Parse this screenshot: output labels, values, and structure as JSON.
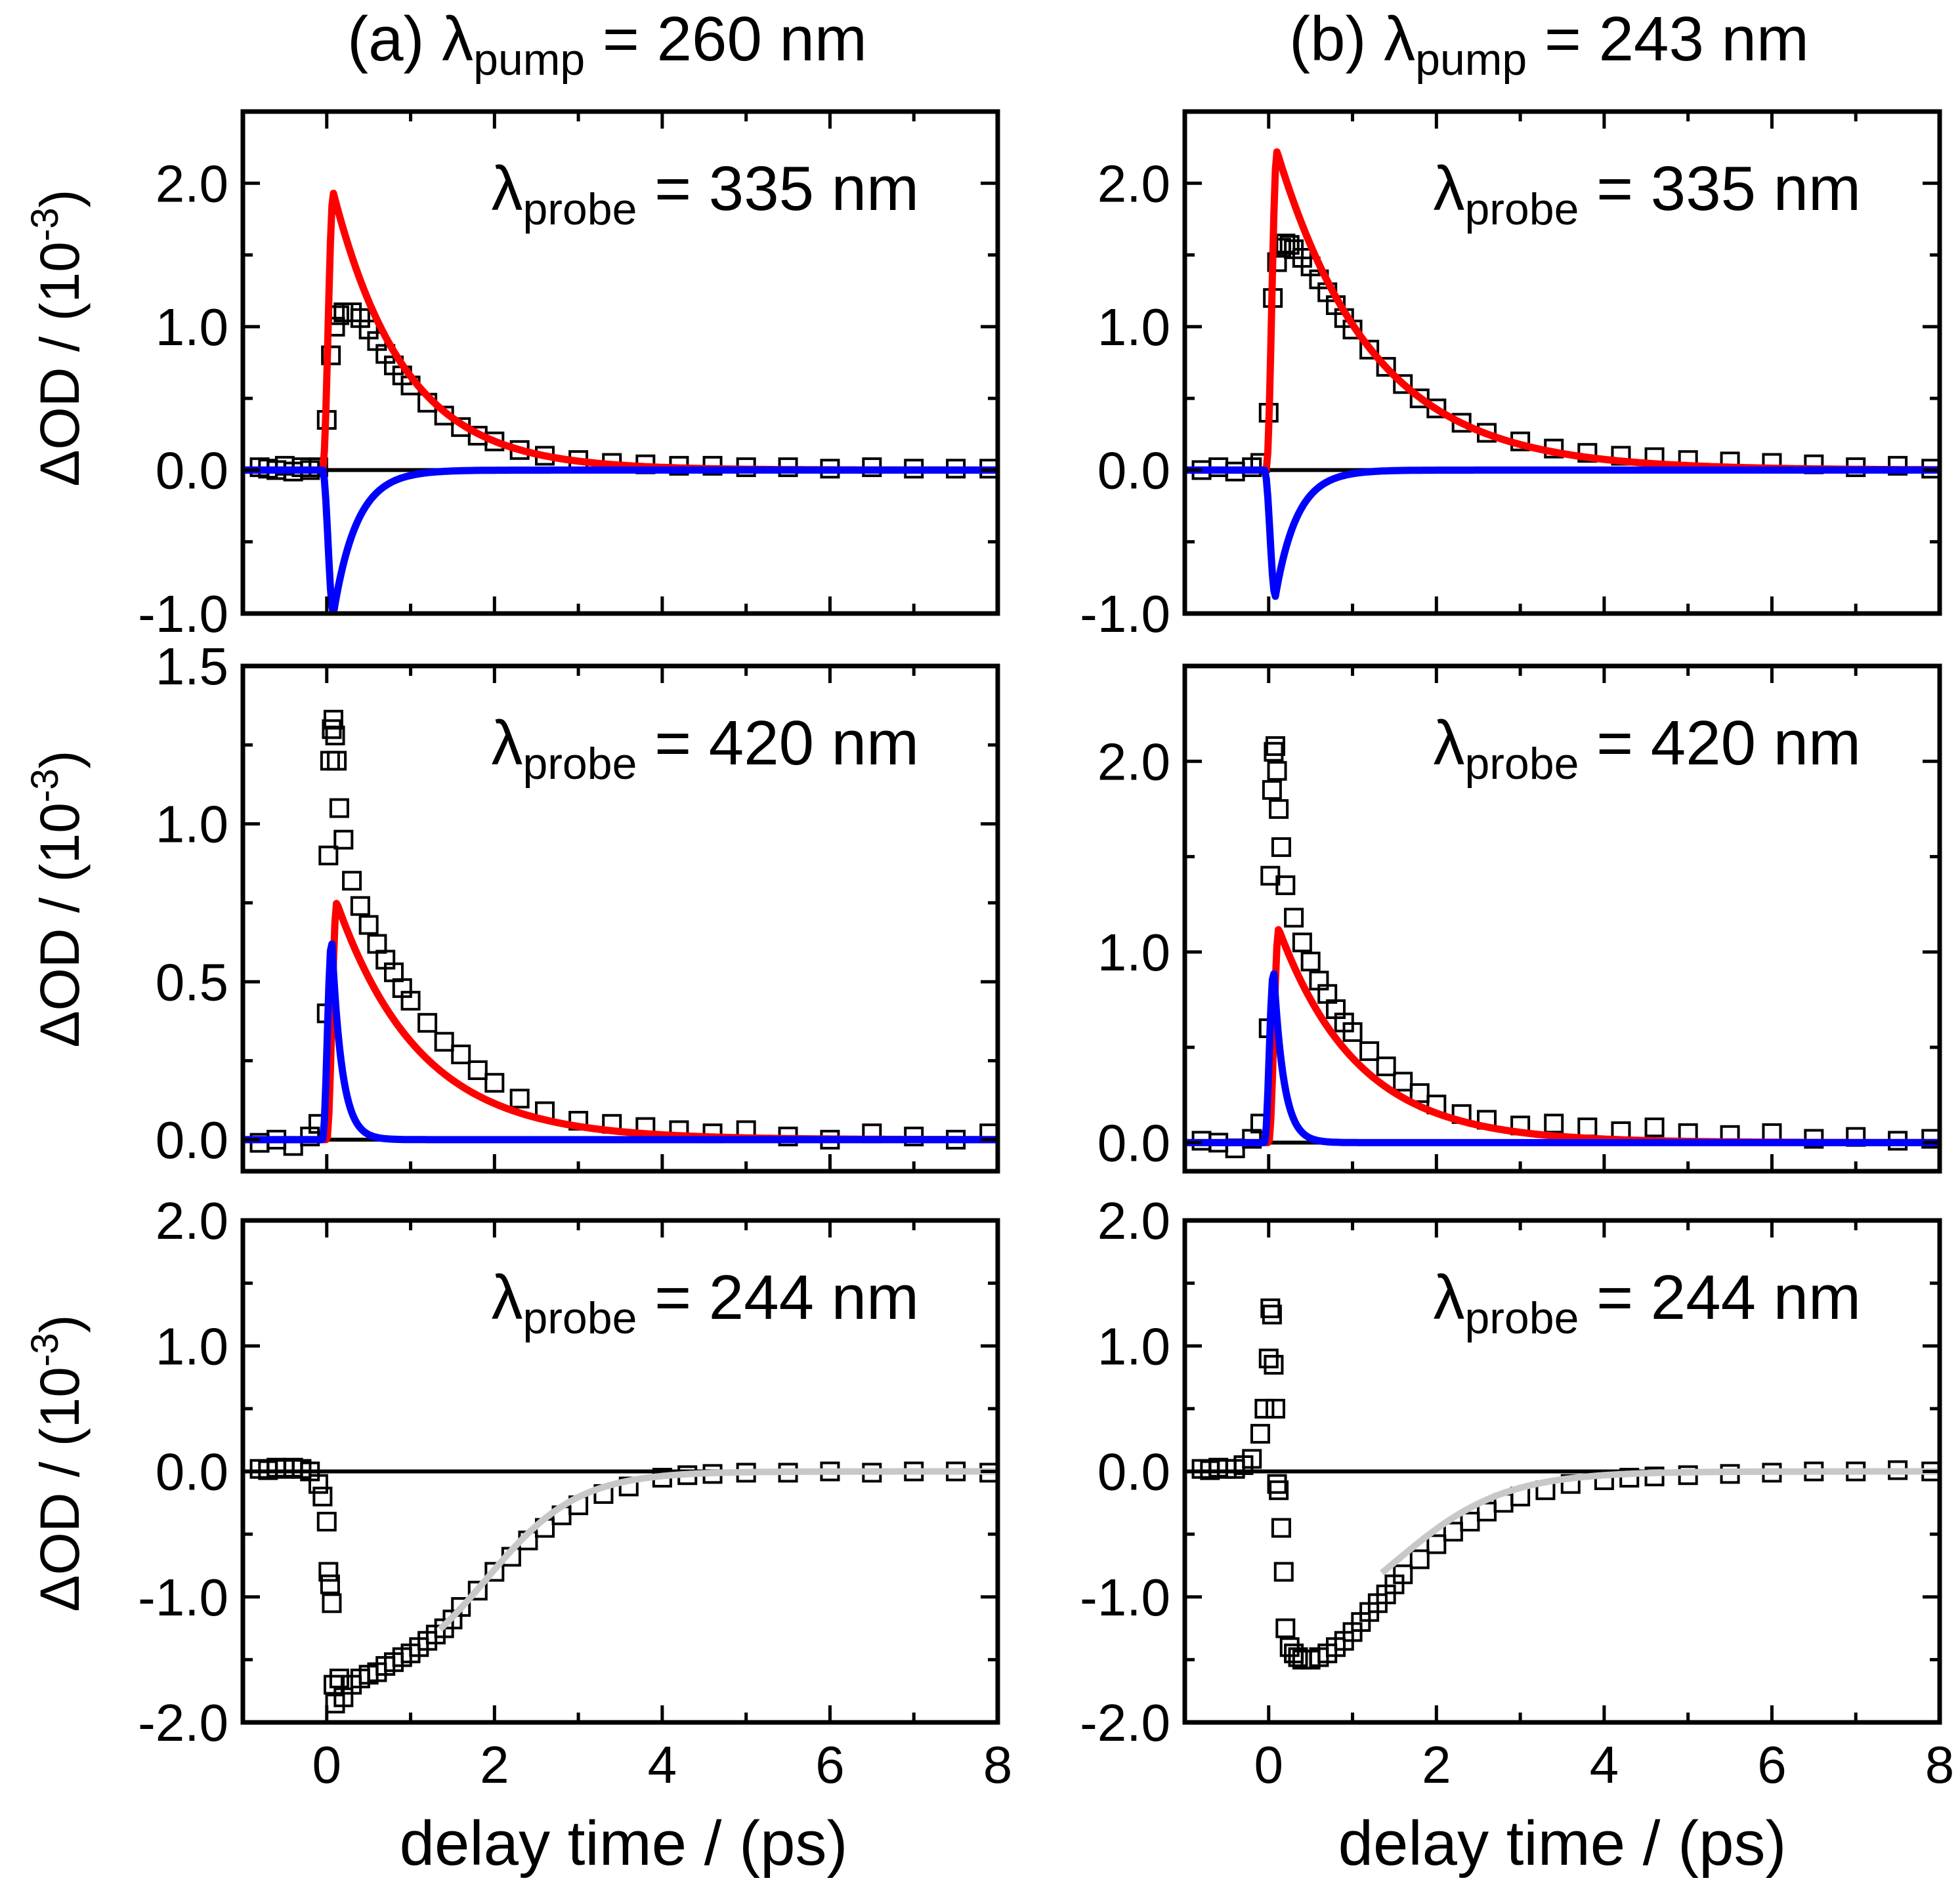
{
  "figure": {
    "x_label": "delay time / (ps)",
    "y_label_main": "ΔOD / (10",
    "y_label_exp": "-3",
    "y_label_close": ")",
    "column_titles": [
      {
        "prefix": "(a) λ",
        "sub": "pump",
        "suffix": " = 260 nm"
      },
      {
        "prefix": "(b) λ",
        "sub": "pump",
        "suffix": " = 243 nm"
      }
    ],
    "colors": {
      "data_marker": "#000000",
      "fit_red": "#ff0000",
      "fit_blue": "#0000ff",
      "fit_gray": "#c8c8c8",
      "zero_line": "#000000"
    }
  },
  "chart_data": [
    {
      "type": "scatter",
      "panel": "a-335",
      "annotation": {
        "prefix": "λ",
        "sub": "probe",
        "suffix": " = 335 nm"
      },
      "xlim": [
        -1,
        8
      ],
      "ylim": [
        -1.0,
        2.5
      ],
      "xticks": [
        0,
        2,
        4,
        6,
        8
      ],
      "xticklabels": [
        "0",
        "2",
        "4",
        "6",
        "8"
      ],
      "yticks": [
        -1.0,
        0.0,
        1.0,
        2.0
      ],
      "yticklabels": [
        "-1.0",
        "0.0",
        "1.0",
        "2.0"
      ],
      "series": [
        {
          "name": "data",
          "style": "markers",
          "x": [
            -0.8,
            -0.7,
            -0.6,
            -0.5,
            -0.4,
            -0.3,
            -0.2,
            -0.1,
            0.0,
            0.05,
            0.1,
            0.15,
            0.2,
            0.3,
            0.4,
            0.5,
            0.6,
            0.7,
            0.8,
            0.9,
            1.0,
            1.2,
            1.4,
            1.6,
            1.8,
            2.0,
            2.3,
            2.6,
            3.0,
            3.4,
            3.8,
            4.2,
            4.6,
            5.0,
            5.5,
            6.0,
            6.5,
            7.0,
            7.5,
            7.9
          ],
          "y": [
            0.02,
            0.01,
            0.0,
            0.03,
            -0.01,
            0.02,
            0.0,
            0.02,
            0.35,
            0.8,
            1.0,
            1.08,
            1.1,
            1.1,
            1.06,
            0.98,
            0.9,
            0.81,
            0.73,
            0.66,
            0.59,
            0.47,
            0.38,
            0.3,
            0.24,
            0.2,
            0.14,
            0.1,
            0.07,
            0.05,
            0.04,
            0.03,
            0.03,
            0.02,
            0.02,
            0.01,
            0.02,
            0.01,
            0.01,
            0.01
          ]
        },
        {
          "name": "fit",
          "color": "red",
          "peak_t": 0.08,
          "peak": 1.93,
          "rise": 0.07,
          "tau": 0.85,
          "t0": -0.05
        },
        {
          "name": "fit",
          "color": "blue",
          "peak_t": 0.08,
          "peak": -1.0,
          "rise": 0.07,
          "tau": 0.28,
          "t0": -0.05
        }
      ]
    },
    {
      "type": "scatter",
      "panel": "b-335",
      "annotation": {
        "prefix": "λ",
        "sub": "probe",
        "suffix": " = 335 nm"
      },
      "xlim": [
        -1,
        8
      ],
      "ylim": [
        -1.0,
        2.5
      ],
      "xticks": [
        0,
        2,
        4,
        6,
        8
      ],
      "xticklabels": [
        "0",
        "2",
        "4",
        "6",
        "8"
      ],
      "yticks": [
        -1.0,
        0.0,
        1.0,
        2.0
      ],
      "yticklabels": [
        "-1.0",
        "0.0",
        "1.0",
        "2.0"
      ],
      "series": [
        {
          "name": "data",
          "style": "markers",
          "x": [
            -0.8,
            -0.6,
            -0.4,
            -0.2,
            -0.1,
            0.0,
            0.05,
            0.1,
            0.15,
            0.2,
            0.25,
            0.3,
            0.4,
            0.5,
            0.6,
            0.7,
            0.8,
            0.9,
            1.0,
            1.2,
            1.4,
            1.6,
            1.8,
            2.0,
            2.3,
            2.6,
            3.0,
            3.4,
            3.8,
            4.2,
            4.6,
            5.0,
            5.5,
            6.0,
            6.5,
            7.0,
            7.5,
            7.9
          ],
          "y": [
            0.0,
            0.02,
            -0.01,
            0.02,
            0.05,
            0.4,
            1.2,
            1.45,
            1.55,
            1.58,
            1.57,
            1.54,
            1.48,
            1.42,
            1.33,
            1.24,
            1.15,
            1.06,
            0.98,
            0.84,
            0.72,
            0.6,
            0.5,
            0.43,
            0.33,
            0.26,
            0.2,
            0.15,
            0.12,
            0.1,
            0.09,
            0.07,
            0.06,
            0.05,
            0.04,
            0.02,
            0.03,
            0.01
          ]
        },
        {
          "name": "fit",
          "color": "red",
          "peak_t": 0.1,
          "peak": 2.22,
          "rise": 0.07,
          "tau": 1.15,
          "t0": -0.03
        },
        {
          "name": "fit",
          "color": "blue",
          "peak_t": 0.08,
          "peak": -0.88,
          "rise": 0.06,
          "tau": 0.26,
          "t0": -0.05
        }
      ]
    },
    {
      "type": "scatter",
      "panel": "a-420",
      "annotation": {
        "prefix": "λ",
        "sub": "probe",
        "suffix": " = 420 nm"
      },
      "xlim": [
        -1,
        8
      ],
      "ylim": [
        -0.1,
        1.5
      ],
      "xticks": [
        0,
        2,
        4,
        6,
        8
      ],
      "xticklabels": [
        "0",
        "2",
        "4",
        "6",
        "8"
      ],
      "yticks": [
        0.0,
        0.5,
        1.0,
        1.5
      ],
      "yticklabels": [
        "0.0",
        "0.5",
        "1.0",
        "1.5"
      ],
      "series": [
        {
          "name": "data",
          "style": "markers",
          "x": [
            -0.8,
            -0.6,
            -0.4,
            -0.2,
            -0.1,
            0.0,
            0.02,
            0.04,
            0.06,
            0.08,
            0.1,
            0.12,
            0.15,
            0.2,
            0.3,
            0.4,
            0.5,
            0.6,
            0.7,
            0.8,
            0.9,
            1.0,
            1.2,
            1.4,
            1.6,
            1.8,
            2.0,
            2.3,
            2.6,
            3.0,
            3.4,
            3.8,
            4.2,
            4.6,
            5.0,
            5.5,
            6.0,
            6.5,
            7.0,
            7.5,
            7.9
          ],
          "y": [
            -0.01,
            0.0,
            -0.02,
            0.01,
            0.05,
            0.4,
            0.9,
            1.2,
            1.3,
            1.33,
            1.28,
            1.2,
            1.05,
            0.95,
            0.82,
            0.74,
            0.68,
            0.62,
            0.57,
            0.53,
            0.48,
            0.44,
            0.37,
            0.31,
            0.27,
            0.22,
            0.18,
            0.13,
            0.09,
            0.06,
            0.05,
            0.04,
            0.03,
            0.02,
            0.03,
            0.01,
            0.0,
            0.02,
            0.01,
            0.0,
            0.02
          ]
        },
        {
          "name": "fit",
          "color": "red",
          "peak_t": 0.12,
          "peak": 0.75,
          "rise": 0.07,
          "tau": 1.0,
          "t0": 0.0
        },
        {
          "name": "fit",
          "color": "blue",
          "peak_t": 0.06,
          "peak": 0.63,
          "rise": 0.05,
          "tau": 0.12,
          "t0": -0.05
        }
      ]
    },
    {
      "type": "scatter",
      "panel": "b-420",
      "annotation": {
        "prefix": "λ",
        "sub": "probe",
        "suffix": " = 420 nm"
      },
      "xlim": [
        -1,
        8
      ],
      "ylim": [
        -0.15,
        2.5
      ],
      "xticks": [
        0,
        2,
        4,
        6,
        8
      ],
      "xticklabels": [
        "0",
        "2",
        "4",
        "6",
        "8"
      ],
      "yticks": [
        0.0,
        1.0,
        2.0
      ],
      "yticklabels": [
        "0.0",
        "1.0",
        "2.0"
      ],
      "series": [
        {
          "name": "data",
          "style": "markers",
          "x": [
            -0.8,
            -0.6,
            -0.4,
            -0.2,
            -0.1,
            0.0,
            0.02,
            0.04,
            0.06,
            0.08,
            0.1,
            0.12,
            0.15,
            0.2,
            0.3,
            0.4,
            0.5,
            0.6,
            0.7,
            0.8,
            0.9,
            1.0,
            1.2,
            1.4,
            1.6,
            1.8,
            2.0,
            2.3,
            2.6,
            3.0,
            3.4,
            3.8,
            4.2,
            4.6,
            5.0,
            5.5,
            6.0,
            6.5,
            7.0,
            7.5,
            7.9
          ],
          "y": [
            0.01,
            0.0,
            -0.03,
            0.02,
            0.1,
            0.6,
            1.4,
            1.85,
            2.05,
            2.08,
            1.95,
            1.75,
            1.55,
            1.35,
            1.18,
            1.05,
            0.95,
            0.85,
            0.78,
            0.7,
            0.63,
            0.58,
            0.48,
            0.4,
            0.32,
            0.26,
            0.2,
            0.15,
            0.12,
            0.09,
            0.1,
            0.08,
            0.06,
            0.08,
            0.05,
            0.04,
            0.05,
            0.02,
            0.03,
            0.01,
            0.02
          ]
        },
        {
          "name": "fit",
          "color": "red",
          "peak_t": 0.12,
          "peak": 1.12,
          "rise": 0.07,
          "tau": 0.95,
          "t0": 0.0
        },
        {
          "name": "fit",
          "color": "blue",
          "peak_t": 0.06,
          "peak": 0.9,
          "rise": 0.05,
          "tau": 0.12,
          "t0": -0.05
        }
      ]
    },
    {
      "type": "scatter",
      "panel": "a-244",
      "annotation": {
        "prefix": "λ",
        "sub": "probe",
        "suffix": " = 244 nm"
      },
      "xlim": [
        -1,
        8
      ],
      "ylim": [
        -2.0,
        2.0
      ],
      "xticks": [
        0,
        2,
        4,
        6,
        8
      ],
      "xticklabels": [
        "0",
        "2",
        "4",
        "6",
        "8"
      ],
      "yticks": [
        -2.0,
        -1.0,
        0.0,
        1.0,
        2.0
      ],
      "yticklabels": [
        "-2.0",
        "-1.0",
        "0.0",
        "1.0",
        "2.0"
      ],
      "series": [
        {
          "name": "data",
          "style": "markers",
          "x": [
            -0.8,
            -0.7,
            -0.6,
            -0.5,
            -0.4,
            -0.3,
            -0.2,
            -0.1,
            -0.05,
            0.0,
            0.02,
            0.04,
            0.06,
            0.08,
            0.1,
            0.15,
            0.2,
            0.3,
            0.4,
            0.5,
            0.6,
            0.7,
            0.8,
            0.9,
            1.0,
            1.1,
            1.2,
            1.3,
            1.4,
            1.5,
            1.6,
            1.8,
            2.0,
            2.2,
            2.4,
            2.6,
            2.8,
            3.0,
            3.3,
            3.6,
            4.0,
            4.3,
            4.6,
            5.0,
            5.5,
            6.0,
            6.5,
            7.0,
            7.5,
            7.9
          ],
          "y": [
            0.02,
            0.01,
            0.03,
            0.02,
            0.03,
            0.02,
            0.0,
            -0.1,
            -0.2,
            -0.4,
            -0.8,
            -0.9,
            -1.05,
            -1.7,
            -1.85,
            -1.65,
            -1.8,
            -1.7,
            -1.65,
            -1.62,
            -1.6,
            -1.55,
            -1.52,
            -1.48,
            -1.45,
            -1.4,
            -1.35,
            -1.3,
            -1.25,
            -1.18,
            -1.08,
            -0.95,
            -0.8,
            -0.68,
            -0.55,
            -0.45,
            -0.35,
            -0.27,
            -0.18,
            -0.12,
            -0.05,
            -0.03,
            -0.02,
            -0.01,
            -0.01,
            0.0,
            -0.01,
            0.0,
            0.0,
            -0.01
          ]
        },
        {
          "name": "fit",
          "color": "gray",
          "kind": "sigmoid",
          "x_start": 1.35,
          "amp": -1.72,
          "center": 1.9,
          "width": 0.55
        }
      ]
    },
    {
      "type": "scatter",
      "panel": "b-244",
      "annotation": {
        "prefix": "λ",
        "sub": "probe",
        "suffix": " = 244 nm"
      },
      "xlim": [
        -1,
        8
      ],
      "ylim": [
        -2.0,
        2.0
      ],
      "xticks": [
        0,
        2,
        4,
        6,
        8
      ],
      "xticklabels": [
        "0",
        "2",
        "4",
        "6",
        "8"
      ],
      "yticks": [
        -2.0,
        -1.0,
        0.0,
        1.0,
        2.0
      ],
      "yticklabels": [
        "-2.0",
        "-1.0",
        "0.0",
        "1.0",
        "2.0"
      ],
      "series": [
        {
          "name": "data",
          "style": "markers",
          "x": [
            -0.8,
            -0.7,
            -0.6,
            -0.5,
            -0.4,
            -0.3,
            -0.2,
            -0.1,
            -0.05,
            0.0,
            0.02,
            0.04,
            0.06,
            0.08,
            0.1,
            0.12,
            0.15,
            0.18,
            0.2,
            0.25,
            0.3,
            0.35,
            0.4,
            0.5,
            0.6,
            0.7,
            0.8,
            0.9,
            1.0,
            1.1,
            1.2,
            1.3,
            1.4,
            1.5,
            1.6,
            1.8,
            2.0,
            2.2,
            2.4,
            2.6,
            2.8,
            3.0,
            3.3,
            3.6,
            4.0,
            4.3,
            4.6,
            5.0,
            5.5,
            6.0,
            6.5,
            7.0,
            7.5,
            7.9
          ],
          "y": [
            0.02,
            0.01,
            0.03,
            0.02,
            0.02,
            0.05,
            0.1,
            0.3,
            0.5,
            0.9,
            1.3,
            1.25,
            0.85,
            0.5,
            -0.1,
            -0.15,
            -0.45,
            -0.8,
            -1.25,
            -1.4,
            -1.45,
            -1.48,
            -1.5,
            -1.5,
            -1.48,
            -1.45,
            -1.4,
            -1.35,
            -1.28,
            -1.2,
            -1.12,
            -1.05,
            -0.98,
            -0.9,
            -0.82,
            -0.7,
            -0.58,
            -0.48,
            -0.4,
            -0.32,
            -0.25,
            -0.2,
            -0.15,
            -0.1,
            -0.07,
            -0.05,
            -0.04,
            -0.03,
            -0.02,
            -0.01,
            0.0,
            0.0,
            0.01,
            0.0
          ]
        },
        {
          "name": "fit",
          "color": "gray",
          "kind": "sigmoid",
          "x_start": 1.35,
          "amp": -1.45,
          "center": 1.5,
          "width": 0.65
        }
      ]
    }
  ]
}
